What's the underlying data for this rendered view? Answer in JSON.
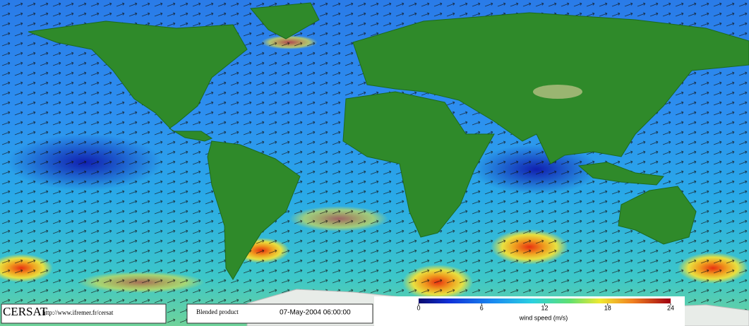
{
  "footer": {
    "logo": "CERSAT",
    "url": "http://www.ifremer.fr/cersat",
    "product": "Blended product",
    "date": "07-May-2004 06:00:00"
  },
  "colorbar": {
    "label": "wind speed (m/s)",
    "range": [
      0,
      24
    ],
    "ticks": [
      0,
      6,
      12,
      18,
      24
    ]
  }
}
